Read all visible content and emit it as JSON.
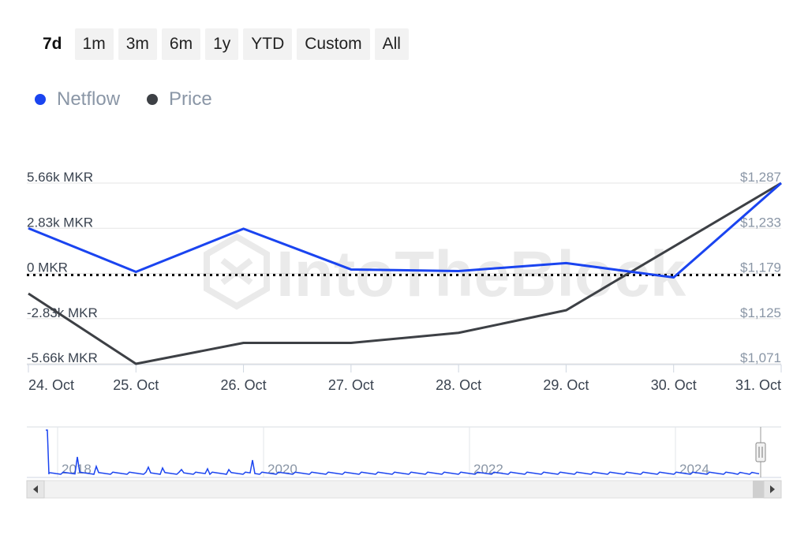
{
  "range_selector": {
    "buttons": [
      "7d",
      "1m",
      "3m",
      "6m",
      "1y",
      "YTD",
      "Custom",
      "All"
    ],
    "active": "7d"
  },
  "legend": {
    "items": [
      {
        "label": "Netflow",
        "color": "#1a44f0"
      },
      {
        "label": "Price",
        "color": "#3d4045"
      }
    ]
  },
  "chart_data": {
    "type": "line",
    "categories": [
      "24. Oct",
      "25. Oct",
      "26. Oct",
      "27. Oct",
      "28. Oct",
      "29. Oct",
      "30. Oct",
      "31. Oct"
    ],
    "series": [
      {
        "name": "Netflow",
        "axis": "left",
        "color": "#1a44f0",
        "values": [
          2830,
          100,
          2800,
          250,
          150,
          650,
          -250,
          5660
        ]
      },
      {
        "name": "Price",
        "axis": "right",
        "color": "#3d4045",
        "values": [
          1155,
          1071,
          1096,
          1096,
          1108,
          1135,
          1211,
          1287
        ]
      }
    ],
    "left_axis": {
      "ticks": [
        5660,
        2830,
        0,
        -2830,
        -5660
      ],
      "tick_labels": [
        "5.66k MKR",
        "2.83k MKR",
        "0 MKR",
        "-2.83k MKR",
        "-5.66k MKR"
      ],
      "range": [
        -5660,
        5660
      ]
    },
    "right_axis": {
      "ticks": [
        1287,
        1233,
        1179,
        1125,
        1071
      ],
      "tick_labels": [
        "$1,287",
        "$1,233",
        "$1,179",
        "$1,125",
        "$1,071"
      ],
      "range": [
        1071,
        1287
      ]
    },
    "zero_line": "dotted",
    "grid": true,
    "legend_position": "top-left",
    "watermark": "IntoTheBlock"
  },
  "navigator": {
    "year_labels": [
      "2018",
      "2020",
      "2022",
      "2024"
    ],
    "series_color": "#1a44f0",
    "left_arrow_icon": "arrow-left-icon",
    "right_arrow_icon": "arrow-right-icon"
  }
}
